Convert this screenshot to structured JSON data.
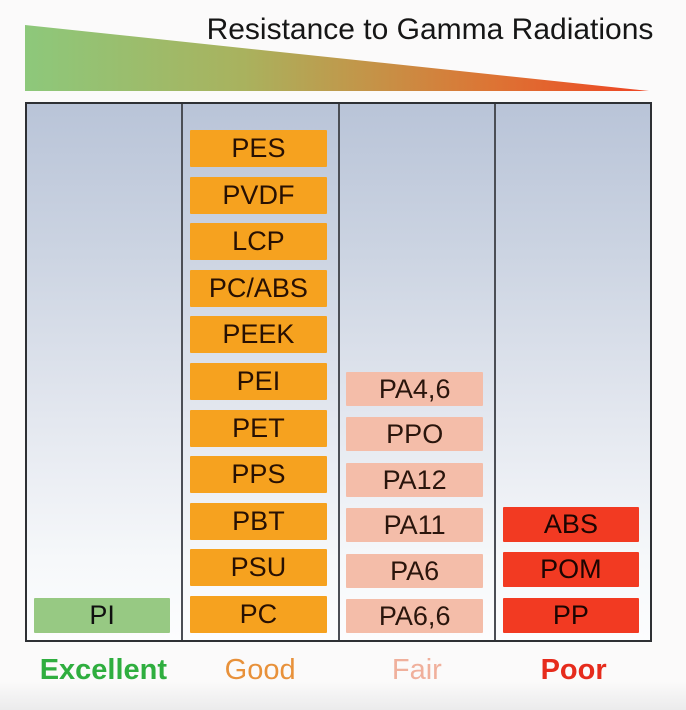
{
  "title": "Resistance to Gamma Radiations",
  "gradient_stops": [
    "#8dc87b",
    "#a9b25e",
    "#c49448",
    "#dd7434",
    "#ee4423"
  ],
  "columns": [
    {
      "id": "excellent",
      "label": "Excellent",
      "label_color": "#2fae3f",
      "box_color": "#97c983",
      "text_color": "#101010",
      "items": [
        "PI"
      ]
    },
    {
      "id": "good",
      "label": "Good",
      "label_color": "#e8913a",
      "box_color": "#f6a21f",
      "text_color": "#271003",
      "items": [
        "PES",
        "PVDF",
        "LCP",
        "PC/ABS",
        "PEEK",
        "PEI",
        "PET",
        "PPS",
        "PBT",
        "PSU",
        "PC"
      ]
    },
    {
      "id": "fair",
      "label": "Fair",
      "label_color": "#f0b09c",
      "box_color": "#f4bda9",
      "text_color": "#2a150c",
      "items": [
        "PA4,6",
        "PPO",
        "PA12",
        "PA11",
        "PA6",
        "PA6,6"
      ]
    },
    {
      "id": "poor",
      "label": "Poor",
      "label_color": "#e62b1c",
      "box_color": "#f23a22",
      "text_color": "#1c0502",
      "items": [
        "ABS",
        "POM",
        "PP"
      ]
    }
  ],
  "chart_data": {
    "type": "table",
    "title": "Resistance to Gamma Radiations",
    "categories": [
      "Excellent",
      "Good",
      "Fair",
      "Poor"
    ],
    "series": [
      {
        "name": "Excellent",
        "values": [
          "PI"
        ]
      },
      {
        "name": "Good",
        "values": [
          "PES",
          "PVDF",
          "LCP",
          "PC/ABS",
          "PEEK",
          "PEI",
          "PET",
          "PPS",
          "PBT",
          "PSU",
          "PC"
        ]
      },
      {
        "name": "Fair",
        "values": [
          "PA4,6",
          "PPO",
          "PA12",
          "PA11",
          "PA6",
          "PA6,6"
        ]
      },
      {
        "name": "Poor",
        "values": [
          "ABS",
          "POM",
          "PP"
        ]
      }
    ],
    "legend_position": "bottom",
    "layout": "materials stacked bottom-aligned per category; gradient wedge runs left (green, best) to right (red, worst)"
  }
}
